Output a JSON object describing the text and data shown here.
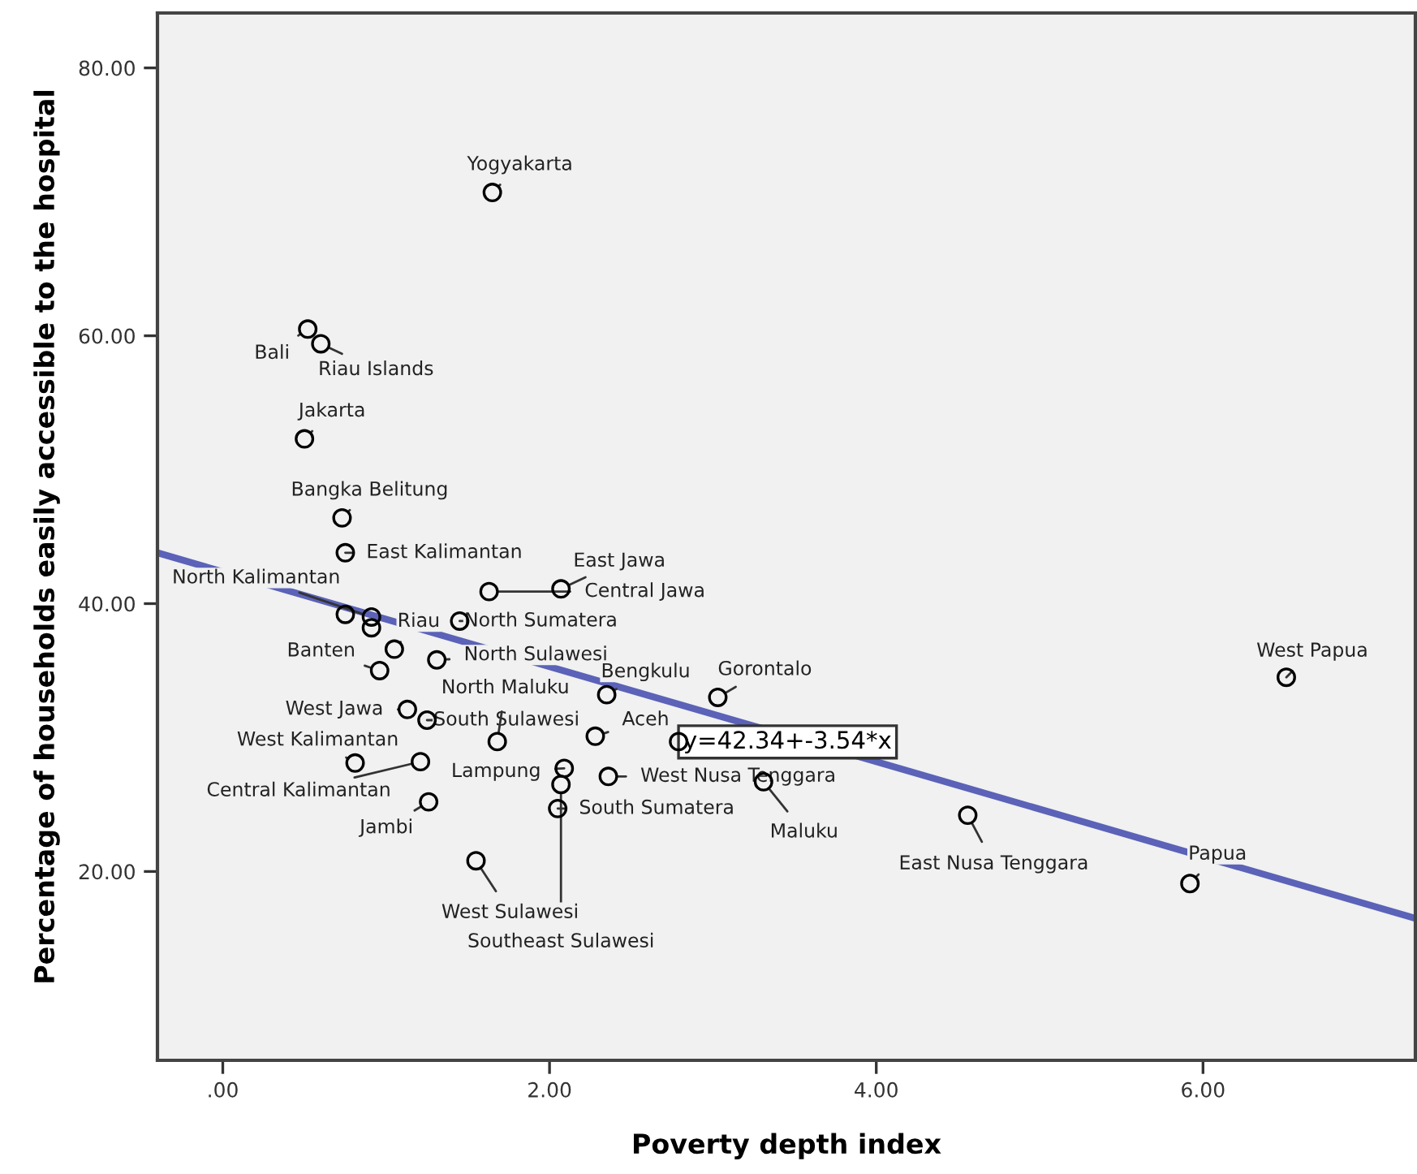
{
  "chart_data": {
    "type": "scatter",
    "xlabel": "Poverty depth index",
    "ylabel": "Percentage of households easily accessible to the hospital",
    "xlim": [
      -0.4,
      7.3
    ],
    "ylim": [
      5.9,
      84.1
    ],
    "xticks": [
      {
        "value": 0,
        "label": ".00"
      },
      {
        "value": 2,
        "label": "2.00"
      },
      {
        "value": 4,
        "label": "4.00"
      },
      {
        "value": 6,
        "label": "6.00"
      }
    ],
    "yticks": [
      {
        "value": 20,
        "label": "20.00"
      },
      {
        "value": 40,
        "label": "40.00"
      },
      {
        "value": 60,
        "label": "60.00"
      },
      {
        "value": 80,
        "label": "80.00"
      }
    ],
    "grid": false,
    "series": [
      {
        "type": "scatter",
        "marker": "circle",
        "color": "#000000",
        "x": [
          1.65,
          0.52,
          0.6,
          0.5,
          0.73,
          0.75,
          1.63,
          2.07,
          0.91,
          1.05,
          0.96,
          1.45,
          1.31,
          2.35,
          3.03,
          1.13,
          1.25,
          1.68,
          2.09,
          2.28,
          0.81,
          1.21,
          1.26,
          2.07,
          2.05,
          2.36,
          1.55,
          3.31,
          4.56,
          5.92,
          6.51,
          0.75,
          0.91,
          2.79
        ],
        "values": [
          70.7,
          60.5,
          59.4,
          52.3,
          46.4,
          43.8,
          40.9,
          41.1,
          39.0,
          36.6,
          35.0,
          38.7,
          35.8,
          33.2,
          33.0,
          32.1,
          31.3,
          29.7,
          27.7,
          30.1,
          28.1,
          28.2,
          25.2,
          26.5,
          24.7,
          27.1,
          20.8,
          26.7,
          24.2,
          19.1,
          34.5,
          39.2,
          38.2,
          29.7
        ]
      },
      {
        "type": "line",
        "color": "#5b62b8",
        "x": [
          -0.4,
          7.3
        ],
        "values": [
          43.8,
          16.5
        ]
      }
    ],
    "annotations": [
      {
        "text": "Yogyakarta",
        "x": 1.65,
        "y": 70.7
      },
      {
        "text": "Bali",
        "x": 0.52,
        "y": 60.5
      },
      {
        "text": "Riau Islands",
        "x": 0.6,
        "y": 59.4
      },
      {
        "text": "Jakarta",
        "x": 0.5,
        "y": 52.3
      },
      {
        "text": "Bangka Belitung",
        "x": 0.73,
        "y": 46.4
      },
      {
        "text": "East Kalimantan",
        "x": 0.75,
        "y": 43.8
      },
      {
        "text": "Central Jawa",
        "x": 1.63,
        "y": 40.9
      },
      {
        "text": "East Jawa",
        "x": 2.07,
        "y": 41.1
      },
      {
        "text": "North Kalimantan",
        "x": 0.91,
        "y": 39.0
      },
      {
        "text": "Riau",
        "x": 1.05,
        "y": 36.6
      },
      {
        "text": "Banten",
        "x": 0.96,
        "y": 35.0
      },
      {
        "text": "North Sumatera",
        "x": 1.45,
        "y": 38.7
      },
      {
        "text": "North Sulawesi",
        "x": 1.31,
        "y": 35.8
      },
      {
        "text": "Bengkulu",
        "x": 2.35,
        "y": 33.2
      },
      {
        "text": "Gorontalo",
        "x": 3.03,
        "y": 33.0
      },
      {
        "text": "West Jawa",
        "x": 1.13,
        "y": 32.1
      },
      {
        "text": "South Sulawesi",
        "x": 1.25,
        "y": 31.3
      },
      {
        "text": "North Maluku",
        "x": 1.68,
        "y": 29.7
      },
      {
        "text": "Lampung",
        "x": 2.09,
        "y": 27.7
      },
      {
        "text": "Aceh",
        "x": 2.28,
        "y": 30.1
      },
      {
        "text": "West Kalimantan",
        "x": 0.81,
        "y": 28.1
      },
      {
        "text": "Central Kalimantan",
        "x": 1.21,
        "y": 28.2
      },
      {
        "text": "Jambi",
        "x": 1.26,
        "y": 25.2
      },
      {
        "text": "Southeast Sulawesi",
        "x": 2.07,
        "y": 26.5
      },
      {
        "text": "South Sumatera",
        "x": 2.05,
        "y": 24.7
      },
      {
        "text": "West Nusa Tenggara",
        "x": 2.36,
        "y": 27.1
      },
      {
        "text": "West Sulawesi",
        "x": 1.55,
        "y": 20.8
      },
      {
        "text": "Maluku",
        "x": 3.31,
        "y": 26.7
      },
      {
        "text": "East Nusa Tenggara",
        "x": 4.56,
        "y": 24.2
      },
      {
        "text": "Papua",
        "x": 5.92,
        "y": 19.1
      },
      {
        "text": "West Papua",
        "x": 6.51,
        "y": 34.5
      },
      "y=42.34+-3.54*x"
    ]
  }
}
